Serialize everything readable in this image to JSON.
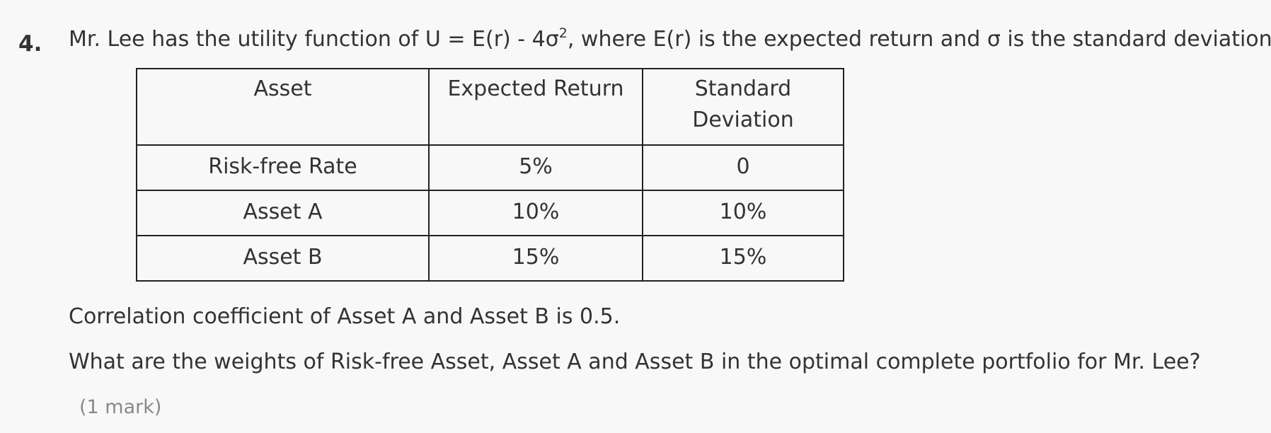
{
  "question": {
    "number": "4.",
    "text_before_sup": "Mr. Lee has the utility function of U = E(r) - 4σ",
    "sup": "2",
    "text_after_sup": ", where E(r) is the expected return and σ is the standard deviation."
  },
  "table": {
    "headers": {
      "asset": "Asset",
      "expected_return": "Expected Return",
      "sd_line1": "Standard",
      "sd_line2": "Deviation"
    },
    "rows": [
      {
        "asset": "Risk-free Rate",
        "expected_return": "5%",
        "sd": "0"
      },
      {
        "asset": "Asset A",
        "expected_return": "10%",
        "sd": "10%"
      },
      {
        "asset": "Asset B",
        "expected_return": "15%",
        "sd": "15%"
      }
    ]
  },
  "correlation_text": "Correlation coefficient of Asset A and Asset B is 0.5.",
  "prompt_text": "What are the weights of Risk-free Asset, Asset A and Asset B in the optimal complete portfolio for Mr. Lee?",
  "marks": "(1 mark)"
}
